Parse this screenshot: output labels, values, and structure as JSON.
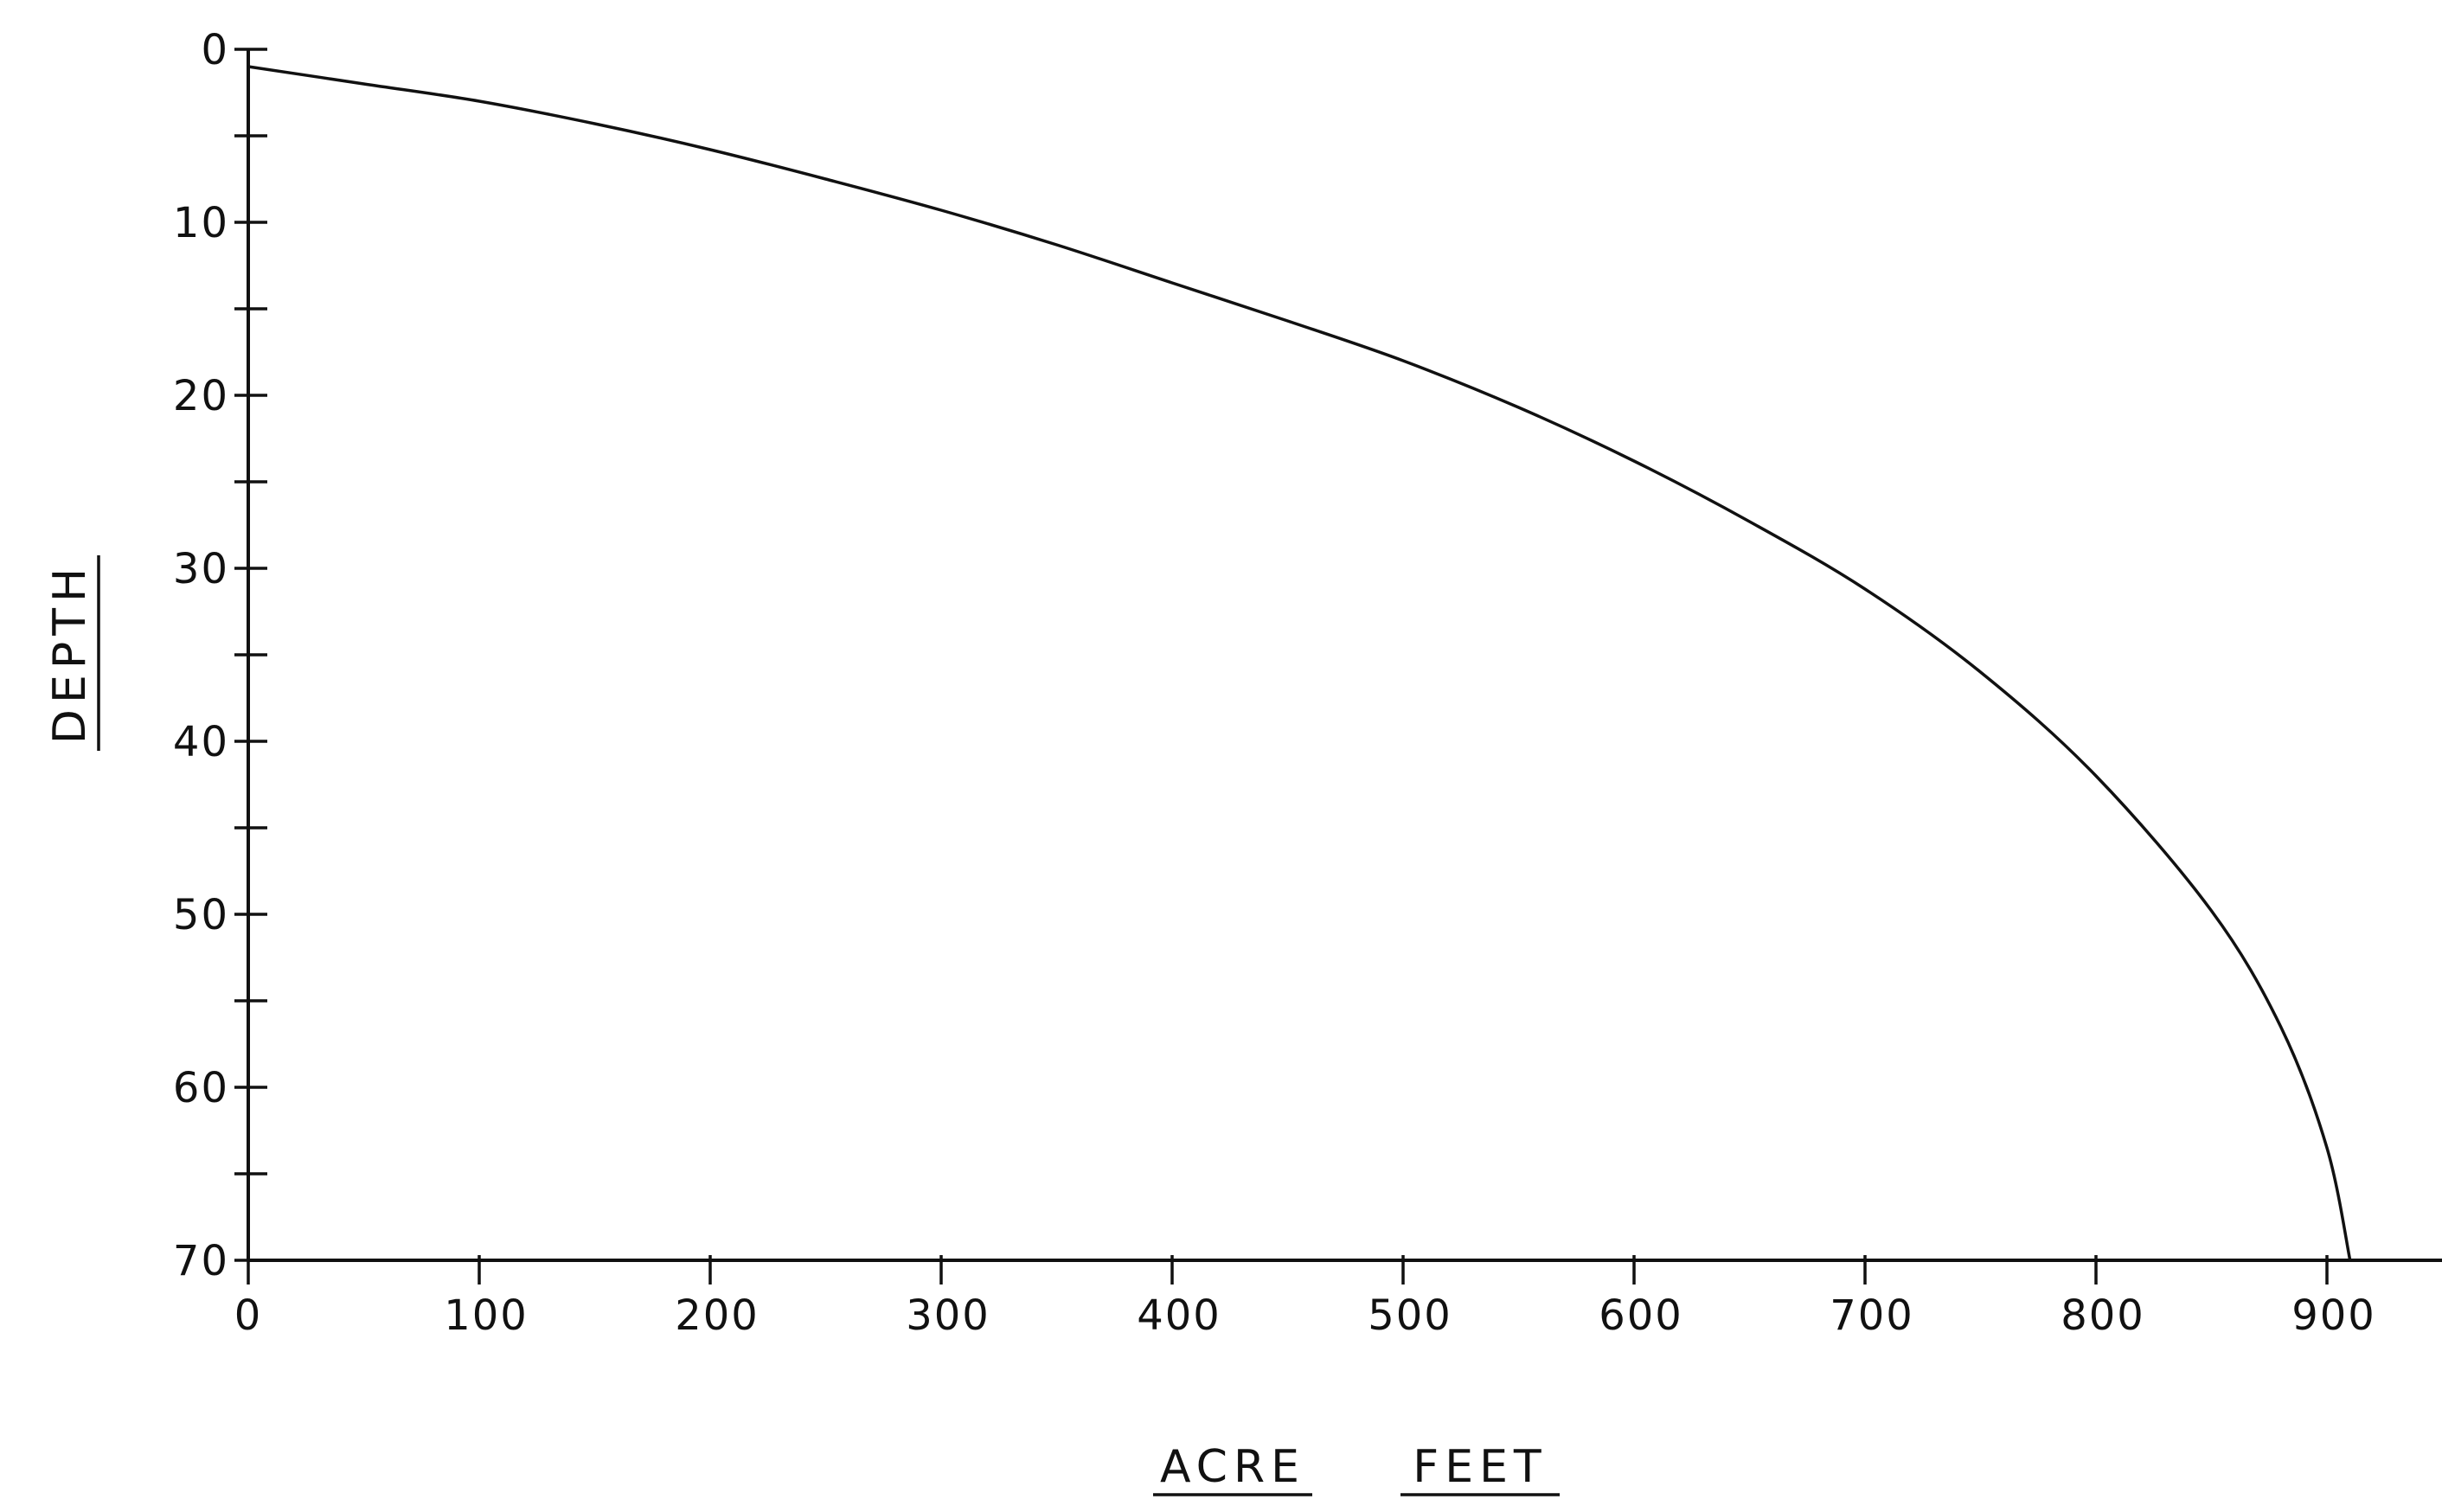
{
  "chart_data": {
    "type": "line",
    "title": "",
    "xlabel_words": [
      "ACRE",
      "FEET"
    ],
    "ylabel": "DEPTH",
    "xlim": [
      0,
      950
    ],
    "ylim": [
      0,
      70
    ],
    "y_inverted": true,
    "grid": false,
    "legend": "none",
    "xticks": [
      "0",
      "100",
      "200",
      "300",
      "400",
      "500",
      "600",
      "700",
      "800",
      "900"
    ],
    "xtick_values": [
      0,
      100,
      200,
      300,
      400,
      500,
      600,
      700,
      800,
      900
    ],
    "yticks": [
      "0",
      "10",
      "20",
      "30",
      "40",
      "50",
      "60",
      "70"
    ],
    "ytick_values": [
      0,
      10,
      20,
      30,
      40,
      50,
      60,
      70
    ],
    "y_minor_step": 5,
    "series": [
      {
        "x": [
          0,
          50,
          100,
          150,
          200,
          250,
          300,
          350,
          400,
          450,
          500,
          550,
          600,
          650,
          700,
          750,
          800,
          850,
          880,
          900,
          910
        ],
        "y": [
          1,
          2,
          3,
          4.3,
          5.8,
          7.5,
          9.3,
          11.3,
          13.5,
          15.7,
          18,
          20.7,
          23.8,
          27.3,
          31.2,
          36,
          42,
          49.8,
          56.5,
          63.5,
          70
        ]
      }
    ]
  }
}
